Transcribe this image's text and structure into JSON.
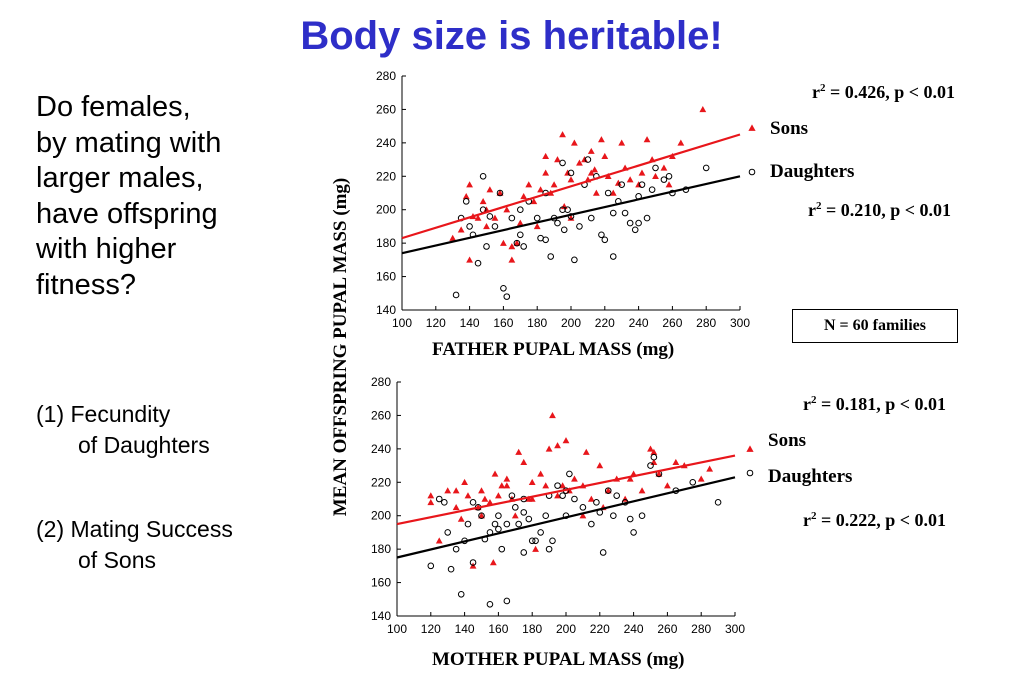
{
  "title": "Body size is heritable!",
  "question": [
    "Do females,",
    "by mating with",
    "larger males,",
    "have offspring",
    "with higher",
    "fitness?"
  ],
  "items": [
    {
      "line1": "(1) Fecundity",
      "line2": "of Daughters"
    },
    {
      "line1": "(2) Mating Success",
      "line2": "of Sons"
    }
  ],
  "shared_ylabel": "MEAN OFFSPRING PUPAL MASS (mg)",
  "n_note": "N = 60 families",
  "colors": {
    "sons": "#e8161b",
    "daughters": "#000000",
    "title": "#2e2ec8"
  },
  "chart_data": [
    {
      "type": "scatter",
      "xlabel": "FATHER PUPAL MASS (mg)",
      "ylabel": "MEAN OFFSPRING PUPAL MASS (mg)",
      "xlim": [
        100,
        300
      ],
      "ylim": [
        140,
        280
      ],
      "xticks": [
        100,
        120,
        140,
        160,
        180,
        200,
        220,
        240,
        260,
        280,
        300
      ],
      "yticks": [
        140,
        160,
        180,
        200,
        220,
        240,
        260,
        280
      ],
      "grid": false,
      "legend_position": "right",
      "stats": {
        "sons": {
          "prefix": "r",
          "sup": "2",
          "text": " = 0.426, p < 0.01"
        },
        "daughters": {
          "prefix": "r",
          "sup": "2",
          "text": " = 0.210, p < 0.01"
        }
      },
      "series": [
        {
          "name": "Sons",
          "marker": "triangle",
          "color": "#e8161b",
          "fit": [
            [
              100,
              183
            ],
            [
              300,
              245
            ]
          ],
          "points": [
            [
              130,
              183
            ],
            [
              135,
              188
            ],
            [
              138,
              208
            ],
            [
              140,
              215
            ],
            [
              142,
              196
            ],
            [
              145,
              195
            ],
            [
              148,
              205
            ],
            [
              150,
              200
            ],
            [
              152,
              212
            ],
            [
              155,
              195
            ],
            [
              158,
              210
            ],
            [
              160,
              180
            ],
            [
              162,
              200
            ],
            [
              165,
              170
            ],
            [
              168,
              180
            ],
            [
              170,
              192
            ],
            [
              172,
              208
            ],
            [
              175,
              215
            ],
            [
              178,
              205
            ],
            [
              180,
              190
            ],
            [
              182,
              212
            ],
            [
              185,
              232
            ],
            [
              188,
              210
            ],
            [
              190,
              215
            ],
            [
              192,
              230
            ],
            [
              195,
              245
            ],
            [
              196,
              202
            ],
            [
              198,
              222
            ],
            [
              200,
              218
            ],
            [
              202,
              240
            ],
            [
              205,
              228
            ],
            [
              208,
              230
            ],
            [
              210,
              218
            ],
            [
              212,
              235
            ],
            [
              214,
              224
            ],
            [
              215,
              210
            ],
            [
              218,
              242
            ],
            [
              220,
              232
            ],
            [
              222,
              220
            ],
            [
              225,
              210
            ],
            [
              228,
              216
            ],
            [
              230,
              240
            ],
            [
              232,
              225
            ],
            [
              235,
              218
            ],
            [
              240,
              215
            ],
            [
              242,
              222
            ],
            [
              245,
              242
            ],
            [
              248,
              230
            ],
            [
              250,
              220
            ],
            [
              255,
              225
            ],
            [
              258,
              215
            ],
            [
              260,
              232
            ],
            [
              265,
              240
            ],
            [
              278,
              260
            ],
            [
              140,
              170
            ],
            [
              150,
              190
            ],
            [
              165,
              178
            ],
            [
              185,
              222
            ],
            [
              200,
              195
            ],
            [
              212,
              222
            ]
          ]
        },
        {
          "name": "Daughters",
          "marker": "circle",
          "color": "#000000",
          "fit": [
            [
              100,
              174
            ],
            [
              300,
              220
            ]
          ],
          "points": [
            [
              132,
              149
            ],
            [
              135,
              195
            ],
            [
              138,
              205
            ],
            [
              140,
              190
            ],
            [
              142,
              185
            ],
            [
              145,
              168
            ],
            [
              148,
              220
            ],
            [
              148,
              200
            ],
            [
              150,
              178
            ],
            [
              152,
              196
            ],
            [
              155,
              190
            ],
            [
              158,
              210
            ],
            [
              160,
              153
            ],
            [
              162,
              148
            ],
            [
              165,
              195
            ],
            [
              168,
              180
            ],
            [
              170,
              185
            ],
            [
              172,
              178
            ],
            [
              175,
              205
            ],
            [
              180,
              195
            ],
            [
              182,
              183
            ],
            [
              185,
              210
            ],
            [
              188,
              172
            ],
            [
              190,
              195
            ],
            [
              192,
              192
            ],
            [
              195,
              200
            ],
            [
              195,
              228
            ],
            [
              196,
              188
            ],
            [
              198,
              200
            ],
            [
              200,
              196
            ],
            [
              202,
              170
            ],
            [
              205,
              190
            ],
            [
              208,
              215
            ],
            [
              210,
              230
            ],
            [
              212,
              195
            ],
            [
              215,
              220
            ],
            [
              218,
              185
            ],
            [
              220,
              182
            ],
            [
              222,
              210
            ],
            [
              225,
              198
            ],
            [
              228,
              205
            ],
            [
              230,
              215
            ],
            [
              232,
              198
            ],
            [
              235,
              192
            ],
            [
              238,
              188
            ],
            [
              240,
              208
            ],
            [
              242,
              215
            ],
            [
              245,
              195
            ],
            [
              248,
              212
            ],
            [
              250,
              225
            ],
            [
              255,
              218
            ],
            [
              258,
              220
            ],
            [
              260,
              210
            ],
            [
              268,
              212
            ],
            [
              280,
              225
            ],
            [
              170,
              200
            ],
            [
              185,
              182
            ],
            [
              200,
              222
            ],
            [
              225,
              172
            ],
            [
              240,
              192
            ]
          ]
        }
      ]
    },
    {
      "type": "scatter",
      "xlabel": "MOTHER PUPAL MASS (mg)",
      "ylabel": "MEAN OFFSPRING PUPAL MASS (mg)",
      "xlim": [
        100,
        300
      ],
      "ylim": [
        140,
        280
      ],
      "xticks": [
        100,
        120,
        140,
        160,
        180,
        200,
        220,
        240,
        260,
        280,
        300
      ],
      "yticks": [
        140,
        160,
        180,
        200,
        220,
        240,
        260,
        280
      ],
      "grid": false,
      "legend_position": "right",
      "stats": {
        "sons": {
          "prefix": "r",
          "sup": "2",
          "text": " = 0.181, p < 0.01"
        },
        "daughters": {
          "prefix": "r",
          "sup": "2",
          "text": " = 0.222, p < 0.01"
        }
      },
      "series": [
        {
          "name": "Sons",
          "marker": "triangle",
          "color": "#e8161b",
          "fit": [
            [
              100,
              195
            ],
            [
              300,
              236
            ]
          ],
          "points": [
            [
              120,
              208
            ],
            [
              125,
              185
            ],
            [
              130,
              215
            ],
            [
              135,
              205
            ],
            [
              138,
              198
            ],
            [
              140,
              220
            ],
            [
              142,
              212
            ],
            [
              145,
              170
            ],
            [
              148,
              205
            ],
            [
              150,
              215
            ],
            [
              152,
              210
            ],
            [
              155,
              208
            ],
            [
              157,
              172
            ],
            [
              158,
              225
            ],
            [
              160,
              212
            ],
            [
              162,
              218
            ],
            [
              165,
              222
            ],
            [
              168,
              210
            ],
            [
              170,
              200
            ],
            [
              172,
              238
            ],
            [
              175,
              232
            ],
            [
              178,
              210
            ],
            [
              180,
              220
            ],
            [
              182,
              180
            ],
            [
              185,
              225
            ],
            [
              188,
              218
            ],
            [
              190,
              240
            ],
            [
              192,
              260
            ],
            [
              195,
              242
            ],
            [
              198,
              218
            ],
            [
              200,
              245
            ],
            [
              202,
              215
            ],
            [
              205,
              222
            ],
            [
              210,
              200
            ],
            [
              212,
              238
            ],
            [
              215,
              210
            ],
            [
              220,
              230
            ],
            [
              225,
              215
            ],
            [
              230,
              222
            ],
            [
              235,
              210
            ],
            [
              240,
              225
            ],
            [
              245,
              215
            ],
            [
              250,
              240
            ],
            [
              252,
              232
            ],
            [
              255,
              225
            ],
            [
              260,
              218
            ],
            [
              265,
              232
            ],
            [
              280,
              222
            ],
            [
              285,
              228
            ],
            [
              120,
              212
            ],
            [
              135,
              215
            ],
            [
              150,
              200
            ],
            [
              165,
              218
            ],
            [
              180,
              210
            ],
            [
              195,
              212
            ],
            [
              210,
              218
            ],
            [
              222,
              205
            ],
            [
              238,
              222
            ],
            [
              252,
              238
            ],
            [
              270,
              230
            ]
          ]
        },
        {
          "name": "Daughters",
          "marker": "circle",
          "color": "#000000",
          "fit": [
            [
              100,
              175
            ],
            [
              300,
              223
            ]
          ],
          "points": [
            [
              120,
              170
            ],
            [
              125,
              210
            ],
            [
              128,
              208
            ],
            [
              132,
              168
            ],
            [
              135,
              180
            ],
            [
              138,
              153
            ],
            [
              140,
              185
            ],
            [
              142,
              195
            ],
            [
              145,
              208
            ],
            [
              148,
              205
            ],
            [
              150,
              200
            ],
            [
              152,
              186
            ],
            [
              155,
              147
            ],
            [
              155,
              190
            ],
            [
              158,
              195
            ],
            [
              160,
              200
            ],
            [
              162,
              180
            ],
            [
              165,
              149
            ],
            [
              165,
              195
            ],
            [
              168,
              212
            ],
            [
              170,
              205
            ],
            [
              172,
              195
            ],
            [
              175,
              210
            ],
            [
              175,
              178
            ],
            [
              178,
              198
            ],
            [
              180,
              185
            ],
            [
              182,
              185
            ],
            [
              185,
              190
            ],
            [
              188,
              200
            ],
            [
              190,
              212
            ],
            [
              190,
              180
            ],
            [
              192,
              185
            ],
            [
              195,
              218
            ],
            [
              198,
              212
            ],
            [
              200,
              215
            ],
            [
              202,
              225
            ],
            [
              205,
              210
            ],
            [
              210,
              205
            ],
            [
              215,
              195
            ],
            [
              218,
              208
            ],
            [
              222,
              178
            ],
            [
              225,
              215
            ],
            [
              228,
              200
            ],
            [
              230,
              212
            ],
            [
              235,
              208
            ],
            [
              238,
              198
            ],
            [
              240,
              190
            ],
            [
              245,
              200
            ],
            [
              250,
              230
            ],
            [
              252,
              235
            ],
            [
              255,
              225
            ],
            [
              265,
              215
            ],
            [
              275,
              220
            ],
            [
              290,
              208
            ],
            [
              130,
              190
            ],
            [
              145,
              172
            ],
            [
              160,
              192
            ],
            [
              175,
              202
            ],
            [
              200,
              200
            ],
            [
              220,
              202
            ]
          ]
        }
      ]
    }
  ]
}
